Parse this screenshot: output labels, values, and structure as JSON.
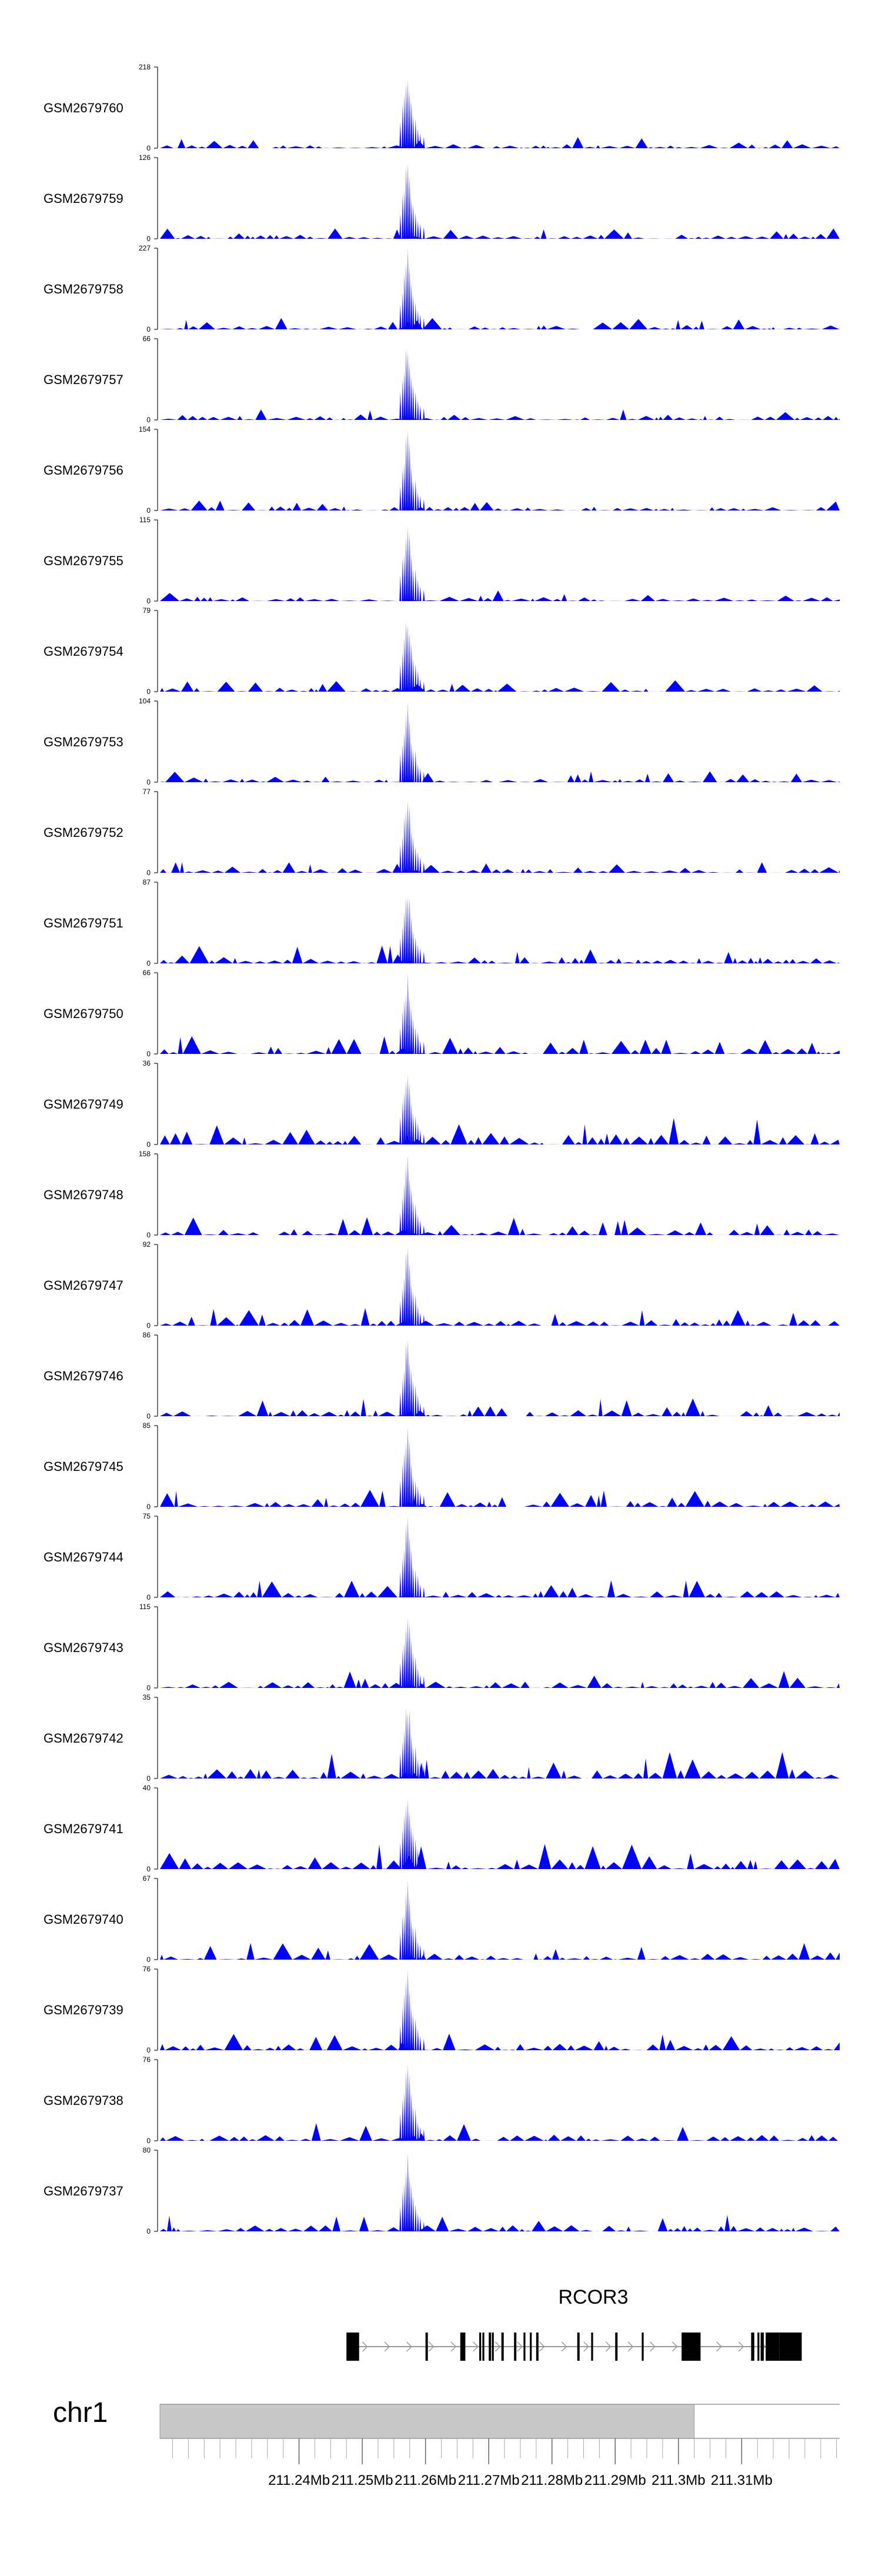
{
  "chart_data": {
    "type": "area",
    "description_of_x": "genomic position (Mb)",
    "xlim": [
      211.218,
      211.3255
    ],
    "color": "#0000ff",
    "tracks": [
      {
        "name": "GSM2679760",
        "ymax": "218",
        "ymin": "0",
        "ylim": [
          0,
          218
        ]
      },
      {
        "name": "GSM2679759",
        "ymax": "126",
        "ymin": "0",
        "ylim": [
          0,
          126
        ]
      },
      {
        "name": "GSM2679758",
        "ymax": "227",
        "ymin": "0",
        "ylim": [
          0,
          227
        ]
      },
      {
        "name": "GSM2679757",
        "ymax": "66",
        "ymin": "0",
        "ylim": [
          0,
          66
        ]
      },
      {
        "name": "GSM2679756",
        "ymax": "154",
        "ymin": "0",
        "ylim": [
          0,
          154
        ]
      },
      {
        "name": "GSM2679755",
        "ymax": "115",
        "ymin": "0",
        "ylim": [
          0,
          115
        ]
      },
      {
        "name": "GSM2679754",
        "ymax": "79",
        "ymin": "0",
        "ylim": [
          0,
          79
        ]
      },
      {
        "name": "GSM2679753",
        "ymax": "104",
        "ymin": "0",
        "ylim": [
          0,
          104
        ]
      },
      {
        "name": "GSM2679752",
        "ymax": "77",
        "ymin": "0",
        "ylim": [
          0,
          77
        ]
      },
      {
        "name": "GSM2679751",
        "ymax": "87",
        "ymin": "0",
        "ylim": [
          0,
          87
        ]
      },
      {
        "name": "GSM2679750",
        "ymax": "66",
        "ymin": "0",
        "ylim": [
          0,
          66
        ]
      },
      {
        "name": "GSM2679749",
        "ymax": "36",
        "ymin": "0",
        "ylim": [
          0,
          36
        ]
      },
      {
        "name": "GSM2679748",
        "ymax": "158",
        "ymin": "0",
        "ylim": [
          0,
          158
        ]
      },
      {
        "name": "GSM2679747",
        "ymax": "92",
        "ymin": "0",
        "ylim": [
          0,
          92
        ]
      },
      {
        "name": "GSM2679746",
        "ymax": "86",
        "ymin": "0",
        "ylim": [
          0,
          86
        ]
      },
      {
        "name": "GSM2679745",
        "ymax": "85",
        "ymin": "0",
        "ylim": [
          0,
          85
        ]
      },
      {
        "name": "GSM2679744",
        "ymax": "75",
        "ymin": "0",
        "ylim": [
          0,
          75
        ]
      },
      {
        "name": "GSM2679743",
        "ymax": "115",
        "ymin": "0",
        "ylim": [
          0,
          115
        ]
      },
      {
        "name": "GSM2679742",
        "ymax": "35",
        "ymin": "0",
        "ylim": [
          0,
          35
        ]
      },
      {
        "name": "GSM2679741",
        "ymax": "40",
        "ymin": "0",
        "ylim": [
          0,
          40
        ]
      },
      {
        "name": "GSM2679740",
        "ymax": "67",
        "ymin": "0",
        "ylim": [
          0,
          67
        ]
      },
      {
        "name": "GSM2679739",
        "ymax": "76",
        "ymin": "0",
        "ylim": [
          0,
          76
        ]
      },
      {
        "name": "GSM2679738",
        "ymax": "76",
        "ymin": "0",
        "ylim": [
          0,
          76
        ]
      },
      {
        "name": "GSM2679737",
        "ymax": "80",
        "ymin": "0",
        "ylim": [
          0,
          80
        ]
      }
    ],
    "gene": {
      "name": "RCOR3",
      "start": 211.2475,
      "end": 211.3195,
      "exons": [
        [
          211.2475,
          211.2478
        ],
        [
          211.248,
          211.2482
        ],
        [
          211.2484,
          211.2486
        ],
        [
          211.2488,
          211.249
        ],
        [
          211.26,
          211.2602
        ],
        [
          211.2655,
          211.2663
        ],
        [
          211.27,
          211.2702
        ],
        [
          211.272,
          211.2722
        ],
        [
          211.274,
          211.2742
        ],
        [
          211.2775,
          211.2777
        ],
        [
          211.284,
          211.2842
        ],
        [
          211.29,
          211.2902
        ],
        [
          211.3005,
          211.3035
        ],
        [
          211.3115,
          211.312
        ],
        [
          211.313,
          211.3135
        ],
        [
          211.316,
          211.3195
        ]
      ],
      "utr": [
        [
          211.2476,
          211.2495
        ],
        [
          211.2685,
          211.2688
        ],
        [
          211.269,
          211.2693
        ],
        [
          211.2705,
          211.2708
        ],
        [
          211.2755,
          211.2758
        ],
        [
          211.2765,
          211.2768
        ],
        [
          211.2862,
          211.2865
        ],
        [
          211.2942,
          211.2945
        ],
        [
          211.3125,
          211.3128
        ],
        [
          211.3138,
          211.316
        ]
      ]
    },
    "chromosome": "chr1",
    "highlight_range": [
      211.218,
      211.3025
    ],
    "tick_labels": [
      "211.24Mb",
      "211.25Mb",
      "211.26Mb",
      "211.27Mb",
      "211.28Mb",
      "211.29Mb",
      "211.3Mb",
      "211.31Mb"
    ],
    "tick_values": [
      211.24,
      211.25,
      211.26,
      211.27,
      211.28,
      211.29,
      211.3,
      211.31
    ],
    "minor_tick_step": 0.0025
  }
}
